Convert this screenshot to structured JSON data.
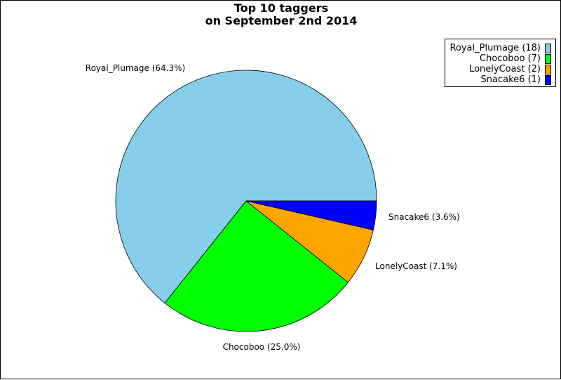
{
  "chart_data": {
    "type": "pie",
    "title": "Top 10 taggers",
    "subtitle": "on September 2nd 2014",
    "slices": [
      {
        "label": "Royal_Plumage",
        "value": 18,
        "percent_label": "Royal_Plumage (64.3%)",
        "legend_label": "Royal_Plumage (18)",
        "color": "#87ceeb"
      },
      {
        "label": "Chocoboo",
        "value": 7,
        "percent_label": "Chocoboo (25.0%)",
        "legend_label": "Chocoboo (7)",
        "color": "#00ff00"
      },
      {
        "label": "LonelyCoast",
        "value": 2,
        "percent_label": "LonelyCoast (7.1%)",
        "legend_label": "LonelyCoast (2)",
        "color": "#ffa500"
      },
      {
        "label": "Snacake6",
        "value": 1,
        "percent_label": "Snacake6 (3.6%)",
        "legend_label": "Snacake6 (1)",
        "color": "#0000ff"
      }
    ],
    "legend_position": "top-right"
  }
}
